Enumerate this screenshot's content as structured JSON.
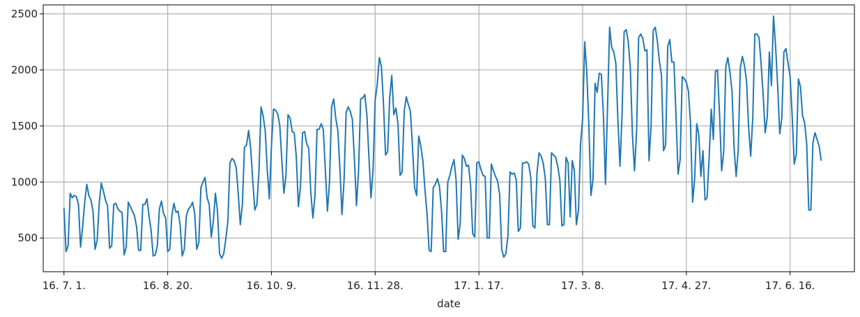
{
  "chart_data": {
    "type": "line",
    "xlabel": "date",
    "ylabel": "",
    "title": "",
    "grid": true,
    "x_tick_labels": [
      "16. 7. 1.",
      "16. 8. 20.",
      "16. 10. 9.",
      "16. 11. 28.",
      "17. 1. 17.",
      "17. 3. 8.",
      "17. 4. 27.",
      "17. 6. 16."
    ],
    "x_tick_dates": [
      "2016-07-01",
      "2016-08-20",
      "2016-10-09",
      "2016-11-28",
      "2017-01-17",
      "2017-03-08",
      "2017-04-27",
      "2017-06-16"
    ],
    "xlim": [
      "2016-06-21",
      "2017-07-17"
    ],
    "y_ticks": [
      500,
      1000,
      1500,
      2000,
      2500
    ],
    "ylim": [
      200,
      2580
    ],
    "line_color": "#1f77b4",
    "start_date": "2016-07-01",
    "series": [
      {
        "values": [
          770,
          380,
          430,
          900,
          860,
          880,
          870,
          800,
          420,
          600,
          820,
          980,
          880,
          840,
          740,
          400,
          480,
          810,
          990,
          920,
          840,
          790,
          410,
          430,
          800,
          810,
          760,
          740,
          730,
          350,
          420,
          820,
          780,
          740,
          700,
          600,
          390,
          390,
          800,
          800,
          850,
          700,
          570,
          340,
          350,
          430,
          760,
          830,
          720,
          680,
          380,
          400,
          700,
          810,
          730,
          740,
          620,
          340,
          400,
          700,
          760,
          780,
          820,
          720,
          400,
          460,
          950,
          1000,
          1040,
          860,
          800,
          510,
          650,
          900,
          740,
          360,
          320,
          360,
          490,
          650,
          1170,
          1210,
          1190,
          1130,
          900,
          620,
          800,
          1310,
          1330,
          1460,
          1300,
          1010,
          750,
          800,
          1100,
          1670,
          1590,
          1460,
          1110,
          850,
          1320,
          1650,
          1640,
          1610,
          1510,
          1200,
          900,
          1060,
          1600,
          1570,
          1450,
          1440,
          1220,
          780,
          960,
          1440,
          1450,
          1340,
          1300,
          900,
          680,
          880,
          1470,
          1470,
          1520,
          1470,
          1100,
          740,
          1000,
          1670,
          1740,
          1570,
          1460,
          1120,
          710,
          1010,
          1620,
          1670,
          1630,
          1560,
          1200,
          790,
          1100,
          1740,
          1750,
          1780,
          1600,
          1220,
          860,
          1110,
          1730,
          1870,
          2110,
          2030,
          1700,
          1240,
          1270,
          1750,
          1950,
          1600,
          1660,
          1520,
          1060,
          1090,
          1630,
          1760,
          1690,
          1630,
          1310,
          950,
          880,
          1410,
          1320,
          1190,
          930,
          720,
          390,
          380,
          950,
          980,
          1030,
          960,
          740,
          380,
          380,
          1000,
          1060,
          1140,
          1200,
          1020,
          490,
          630,
          1240,
          1210,
          1140,
          1150,
          970,
          540,
          510,
          1170,
          1180,
          1110,
          1060,
          1050,
          500,
          500,
          1160,
          1100,
          1050,
          1010,
          890,
          400,
          330,
          360,
          520,
          1090,
          1070,
          1080,
          1020,
          560,
          590,
          1170,
          1170,
          1180,
          1160,
          1040,
          610,
          590,
          1080,
          1260,
          1230,
          1170,
          1030,
          620,
          620,
          1260,
          1240,
          1220,
          1140,
          1020,
          610,
          620,
          1220,
          1170,
          690,
          1190,
          1100,
          620,
          750,
          1340,
          1570,
          2250,
          1980,
          1500,
          880,
          1020,
          1880,
          1800,
          1970,
          1960,
          1600,
          980,
          1670,
          2380,
          2200,
          2160,
          2060,
          1550,
          1140,
          1600,
          2340,
          2360,
          2250,
          2010,
          1420,
          1100,
          1450,
          2290,
          2320,
          2280,
          2170,
          2180,
          1190,
          1510,
          2350,
          2380,
          2260,
          2080,
          1950,
          1280,
          1330,
          2210,
          2270,
          2070,
          2070,
          1590,
          1070,
          1200,
          1940,
          1920,
          1890,
          1810,
          1520,
          820,
          1030,
          1520,
          1420,
          1050,
          1280,
          840,
          860,
          1230,
          1650,
          1380,
          1990,
          2000,
          1600,
          1100,
          1270,
          2030,
          2110,
          1980,
          1810,
          1300,
          1050,
          1290,
          2020,
          2120,
          2040,
          1900,
          1490,
          1230,
          1570,
          2320,
          2320,
          2290,
          2060,
          1780,
          1440,
          1580,
          2160,
          1860,
          2480,
          2210,
          1860,
          1430,
          1570,
          2160,
          2190,
          2060,
          1940,
          1590,
          1160,
          1250,
          1920,
          1850,
          1590,
          1530,
          1340,
          750,
          750,
          1350,
          1440,
          1380,
          1320,
          1190
        ]
      }
    ]
  }
}
